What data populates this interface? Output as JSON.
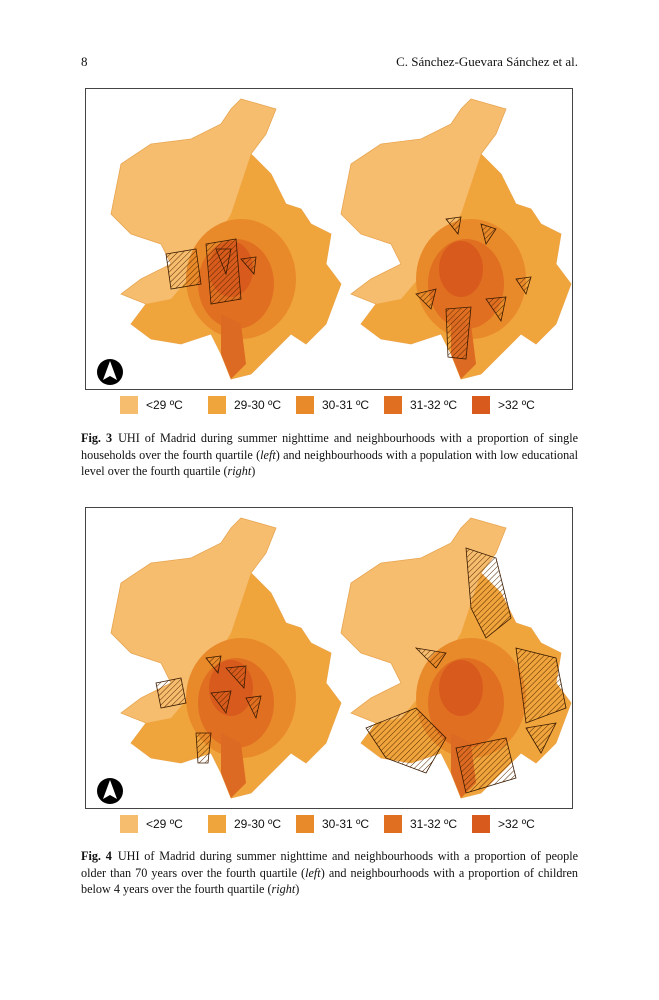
{
  "header": {
    "page_number": "8",
    "running_head": "C. Sánchez-Guevara Sánchez et al."
  },
  "figures": [
    {
      "legend": [
        "<29 ºC",
        "29-30 ºC",
        "30-31 ºC",
        "31-32 ºC",
        ">32 ºC"
      ],
      "caption_label": "Fig. 3",
      "caption": [
        "UHI of Madrid during summer nighttime and neighbourhoods with a proportion of single households over the fourth quartile (",
        "left",
        ") and neighbourhoods with a population with low educational level over the fourth quartile (",
        "right",
        ")"
      ]
    },
    {
      "legend": [
        "<29 ºC",
        "29-30 ºC",
        "30-31 ºC",
        "31-32 ºC",
        ">32 ºC"
      ],
      "caption_label": "Fig. 4",
      "caption": [
        "UHI of Madrid during summer nighttime and neighbourhoods with a proportion of people older than 70 years over the fourth quartile (",
        "left",
        ") and neighbourhoods with a proportion of children below 4 years over the fourth quartile (",
        "right",
        ")"
      ]
    }
  ]
}
